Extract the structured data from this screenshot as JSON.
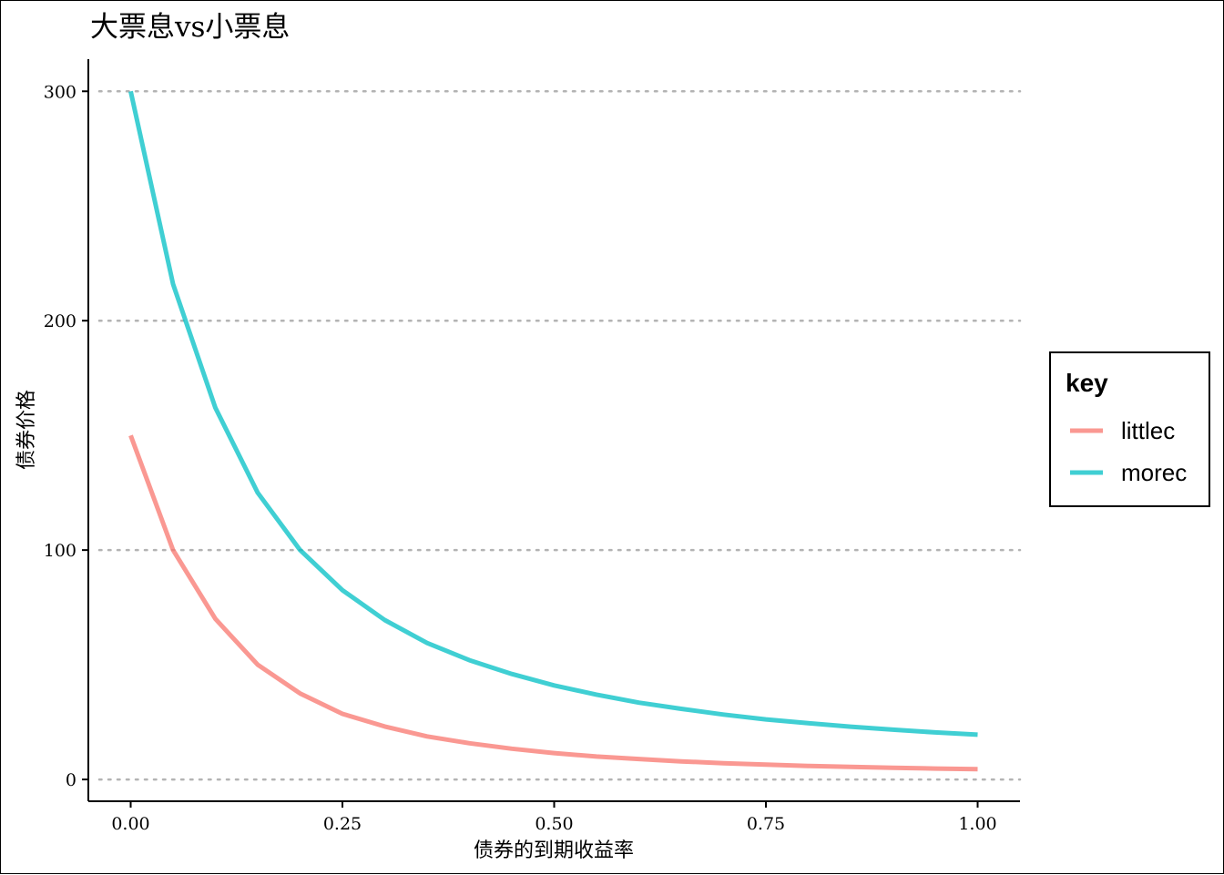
{
  "chart_data": {
    "type": "line",
    "title": "大票息vs小票息",
    "xlabel": "债券的到期收益率",
    "ylabel": "债券价格",
    "x": [
      0,
      0.05,
      0.1,
      0.15,
      0.2,
      0.25,
      0.3,
      0.35,
      0.4,
      0.45,
      0.5,
      0.55,
      0.6,
      0.65,
      0.7,
      0.75,
      0.8,
      0.85,
      0.9,
      0.95,
      1.0
    ],
    "xlim": [
      -0.05,
      1.05
    ],
    "ylim": [
      -9.5,
      314
    ],
    "x_ticks": [
      0,
      0.25,
      0.5,
      0.75,
      1.0
    ],
    "x_tick_labels": [
      "0.00",
      "0.25",
      "0.50",
      "0.75",
      "1.00"
    ],
    "y_ticks": [
      0,
      100,
      200,
      300
    ],
    "y_tick_labels": [
      "0",
      "100",
      "200",
      "300"
    ],
    "grid": "horizontal dotted",
    "legend": {
      "title": "key",
      "placement": "right"
    },
    "series": [
      {
        "name": "littlec",
        "color": "#F8766D",
        "values": [
          150,
          100,
          70,
          50,
          37.5,
          28.6,
          23.1,
          18.75,
          15.8,
          13.4,
          11.5,
          10.0,
          8.9,
          7.9,
          7.1,
          6.45,
          5.9,
          5.45,
          5.1,
          4.75,
          4.5
        ]
      },
      {
        "name": "morec",
        "color": "#00BFC4",
        "values": [
          300,
          216,
          162,
          125,
          100,
          82.5,
          69.5,
          59.5,
          52,
          46,
          41,
          37,
          33.5,
          30.8,
          28.3,
          26.2,
          24.5,
          23,
          21.7,
          20.5,
          19.5
        ]
      }
    ]
  }
}
